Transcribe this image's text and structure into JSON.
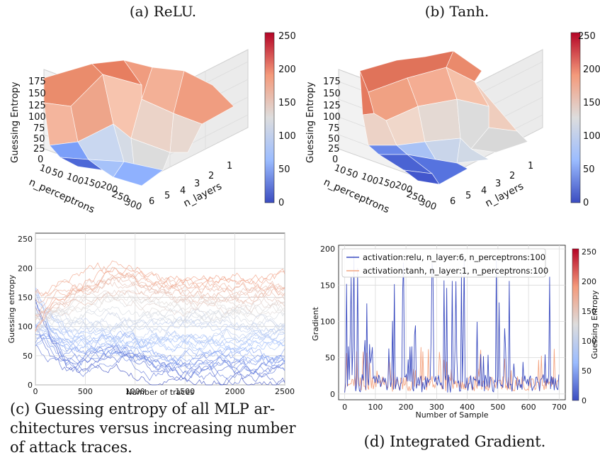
{
  "chart_data": [
    {
      "type": "surface3d",
      "caption": "(a) ReLU.",
      "zlabel": "Guessing Entropy",
      "xlabel": "n_perceptrons",
      "ylabel": "n_layers",
      "x_ticks": [
        "10",
        "50",
        "100",
        "150",
        "200",
        "250",
        "300"
      ],
      "y_ticks": [
        "1",
        "2",
        "3",
        "4",
        "5",
        "6"
      ],
      "z_ticks": [
        "0",
        "25",
        "50",
        "75",
        "100",
        "125",
        "150",
        "175"
      ],
      "colorbar_ticks": [
        "0",
        "50",
        "100",
        "150",
        "200",
        "250"
      ],
      "colorscale": [
        "#3b4cc0",
        "#b8d0f9",
        "#dddddd",
        "#f4b095",
        "#b40426"
      ]
    },
    {
      "type": "surface3d",
      "caption": "(b) Tanh.",
      "zlabel": "Guessing Entropy",
      "xlabel": "n_perceptrons",
      "ylabel": "n_layers",
      "x_ticks": [
        "10",
        "50",
        "100",
        "150",
        "200",
        "250",
        "300"
      ],
      "y_ticks": [
        "1",
        "2",
        "3",
        "4",
        "5",
        "6"
      ],
      "z_ticks": [
        "0",
        "25",
        "50",
        "75",
        "100",
        "125",
        "150",
        "175"
      ],
      "colorbar_ticks": [
        "0",
        "50",
        "100",
        "150",
        "200",
        "250"
      ],
      "colorscale": [
        "#3b4cc0",
        "#b8d0f9",
        "#dddddd",
        "#f4b095",
        "#b40426"
      ]
    },
    {
      "type": "line",
      "caption": [
        "(c) Guessing entropy of all MLP ar-",
        "chitectures versus increasing number",
        "of attack traces."
      ],
      "xlabel": "Number of traces",
      "ylabel": "Guessing entropy",
      "xlim": [
        0,
        2500
      ],
      "ylim": [
        0,
        260
      ],
      "x_ticks": [
        0,
        500,
        1000,
        1500,
        2000,
        2500
      ],
      "y_ticks": [
        0,
        50,
        100,
        150,
        200,
        250
      ],
      "grid": true,
      "series_count": 42
    },
    {
      "type": "line",
      "caption": "(d) Integrated Gradient.",
      "xlabel": "Number of Sample",
      "ylabel": "Gradient",
      "colorbar_label": "Guessing Entropy",
      "xlim": [
        -20,
        720
      ],
      "ylim": [
        -8,
        205
      ],
      "x_ticks": [
        0,
        100,
        200,
        300,
        400,
        500,
        600,
        700
      ],
      "y_ticks": [
        0,
        50,
        100,
        150,
        200
      ],
      "colorbar_ticks": [
        "0",
        "50",
        "100",
        "150",
        "200",
        "250"
      ],
      "legend_position": "top",
      "grid": true,
      "series": [
        {
          "name": "activation:relu, n_layer:6, n_perceptrons:100",
          "color": "#3b4cc0"
        },
        {
          "name": "activation:tanh, n_layer:1, n_perceptrons:100",
          "color": "#f4a582"
        }
      ]
    }
  ]
}
